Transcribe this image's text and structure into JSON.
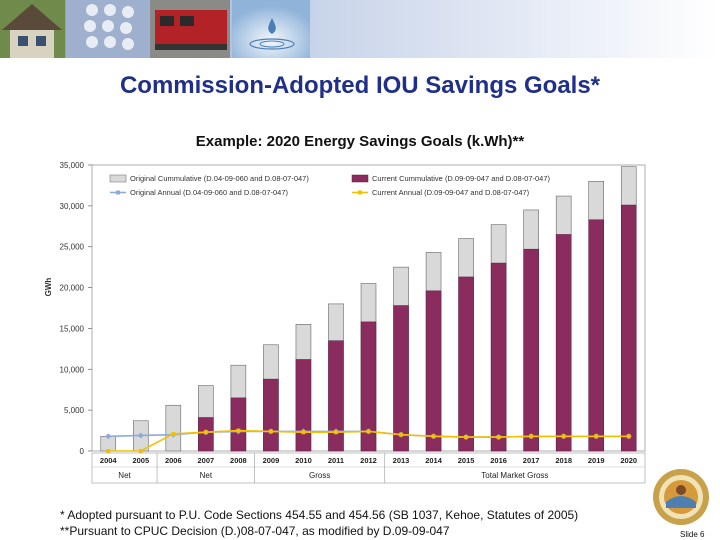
{
  "slide": {
    "title": "Commission-Adopted IOU Savings Goals*",
    "subtitle": "Example: 2020 Energy Savings Goals (k.Wh)**",
    "footnote1": "* Adopted pursuant to P.U. Code Sections 454.55 and 454.56 (SB 1037, Kehoe, Statutes of 2005)",
    "footnote2": "**Pursuant to CPUC Decision (D.)08-07-047, as modified by D.09-09-047",
    "slide_number": "Slide 6"
  },
  "colors": {
    "title": "#1f2f8a",
    "original_cumulative": "#d9d9d9",
    "current_cumulative": "#8b2c5e",
    "original_annual": "#8ea9db",
    "current_annual": "#f2c200"
  },
  "chart_data": {
    "type": "bar",
    "ylabel": "GWh",
    "ylim": [
      0,
      35000
    ],
    "yticks": [
      "0",
      "5,000",
      "10,000",
      "15,000",
      "20,000",
      "25,000",
      "30,000",
      "35,000"
    ],
    "categories": [
      "2004",
      "2005",
      "2006",
      "2007",
      "2008",
      "2009",
      "2010",
      "2011",
      "2012",
      "2013",
      "2014",
      "2015",
      "2016",
      "2017",
      "2018",
      "2019",
      "2020"
    ],
    "groups": [
      {
        "label": "Net",
        "span": 2
      },
      {
        "label": "Net",
        "span": 3
      },
      {
        "label": "Gross",
        "span": 4
      },
      {
        "label": "Total Market Gross",
        "span": 8
      }
    ],
    "legend_position": "top-left",
    "series": [
      {
        "name": "Original Cummulative (D.04-09-060 and D.08-07-047)",
        "kind": "bar",
        "values": [
          1800,
          3700,
          5600,
          8000,
          10500,
          13000,
          15500,
          18000,
          20500,
          22500,
          24300,
          26000,
          27700,
          29500,
          31200,
          33000,
          34800
        ]
      },
      {
        "name": "Current Cummulative (D.09-09-047 and D.08-07-047)",
        "kind": "bar",
        "values": [
          null,
          null,
          null,
          4100,
          6500,
          8800,
          11200,
          13500,
          15800,
          17800,
          19600,
          21300,
          23000,
          24700,
          26500,
          28300,
          30100
        ]
      },
      {
        "name": "Original Annual (D.04-09-060 and D.08-07-047)",
        "kind": "line",
        "values": [
          1800,
          1900,
          2000,
          2300,
          2400,
          2400,
          2400,
          2400,
          2400,
          2000,
          1800,
          1700,
          1700,
          1800,
          1800,
          1800,
          1800
        ]
      },
      {
        "name": "Current Annual (D.09-09-047 and D.08-07-047)",
        "kind": "line",
        "values": [
          0,
          0,
          2100,
          2300,
          2500,
          2400,
          2300,
          2300,
          2400,
          2000,
          1800,
          1700,
          1700,
          1800,
          1800,
          1800,
          1800
        ]
      }
    ]
  }
}
